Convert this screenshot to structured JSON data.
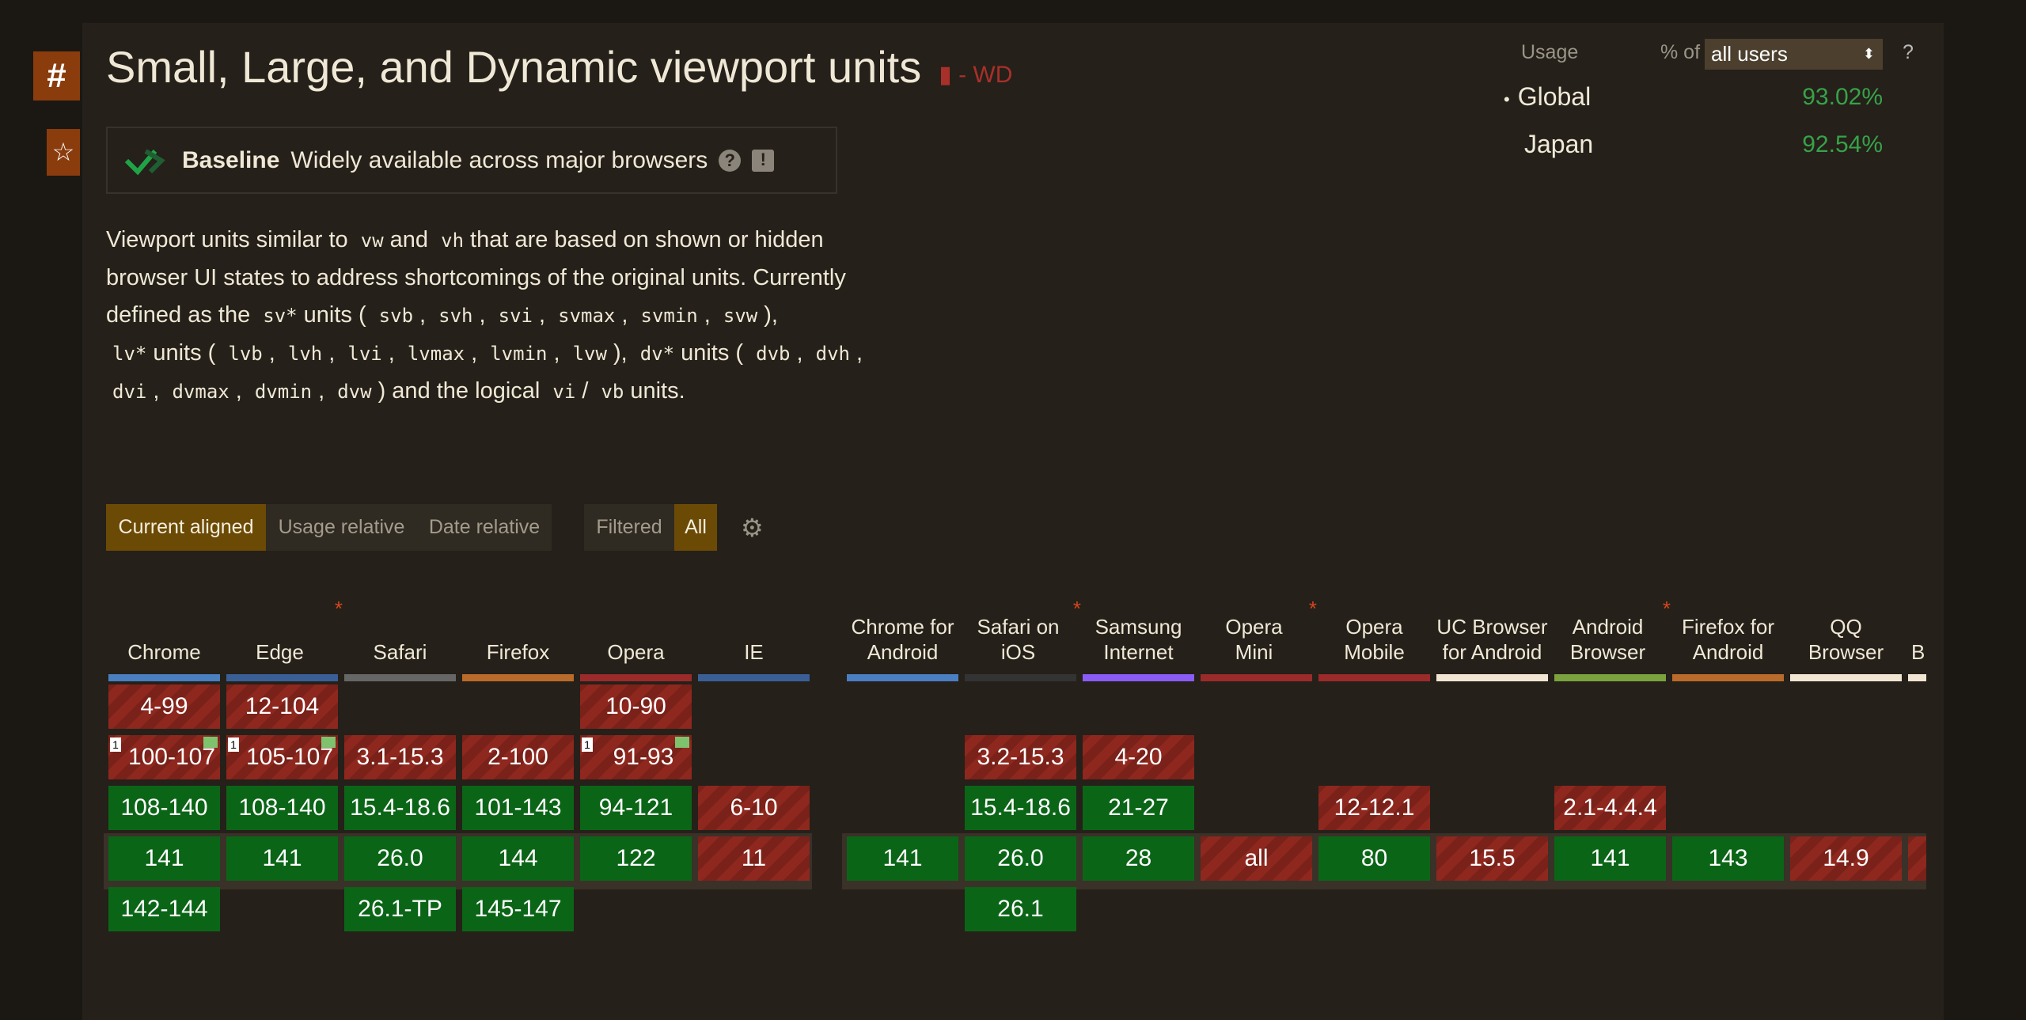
{
  "title": "Small, Large, and Dynamic viewport units",
  "spec_status": "- WD",
  "anchor_symbol": "#",
  "star_symbol": "☆",
  "baseline": {
    "label": "Baseline",
    "text": "Widely available across major browsers",
    "help": "?",
    "feedback": "!"
  },
  "description": [
    {
      "t": "Viewport units similar to"
    },
    {
      "c": "vw"
    },
    {
      "t": "and"
    },
    {
      "c": "vh"
    },
    {
      "t": "that are based on shown or hidden browser UI states to address shortcomings of the original units. Currently defined as the"
    },
    {
      "c": "sv*"
    },
    {
      "t": "units ("
    },
    {
      "c": "svb"
    },
    {
      "t": ","
    },
    {
      "c": "svh"
    },
    {
      "t": ","
    },
    {
      "c": "svi"
    },
    {
      "t": ","
    },
    {
      "c": "svmax"
    },
    {
      "t": ","
    },
    {
      "c": "svmin"
    },
    {
      "t": ","
    },
    {
      "c": "svw"
    },
    {
      "t": "),"
    },
    {
      "c": "lv*"
    },
    {
      "t": "units ("
    },
    {
      "c": "lvb"
    },
    {
      "t": ","
    },
    {
      "c": "lvh"
    },
    {
      "t": ","
    },
    {
      "c": "lvi"
    },
    {
      "t": ","
    },
    {
      "c": "lvmax"
    },
    {
      "t": ","
    },
    {
      "c": "lvmin"
    },
    {
      "t": ","
    },
    {
      "c": "lvw"
    },
    {
      "t": "),"
    },
    {
      "c": "dv*"
    },
    {
      "t": "units ("
    },
    {
      "c": "dvb"
    },
    {
      "t": ","
    },
    {
      "c": "dvh"
    },
    {
      "t": ","
    },
    {
      "c": "dvi"
    },
    {
      "t": ","
    },
    {
      "c": "dvmax"
    },
    {
      "t": ","
    },
    {
      "c": "dvmin"
    },
    {
      "t": ","
    },
    {
      "c": "dvw"
    },
    {
      "t": ") and the logical"
    },
    {
      "c": "vi"
    },
    {
      "t": "/"
    },
    {
      "c": "vb"
    },
    {
      "t": "units."
    }
  ],
  "view_buttons": {
    "current_aligned": "Current aligned",
    "usage_relative": "Usage relative",
    "date_relative": "Date relative",
    "filtered": "Filtered",
    "all": "All"
  },
  "usage": {
    "label": "Usage",
    "pct_of": "% of",
    "select_value": "all users",
    "help": "?",
    "regions": [
      {
        "name": "Global",
        "value": "93.02%",
        "bullet": "•"
      },
      {
        "name": "Japan",
        "value": "92.54%",
        "bullet": ""
      }
    ]
  },
  "colors": {
    "supported": "#0b6517",
    "unsupported": "#8e281f",
    "accent": "#6b4a06"
  },
  "browsers": [
    {
      "name": "Chrome",
      "bar": "#4a7fc1",
      "cells": [
        {
          "v": "4-99",
          "s": "n"
        },
        {
          "v": "100-107",
          "s": "n",
          "note": "1",
          "flag": true
        },
        {
          "v": "108-140",
          "s": "y"
        },
        {
          "v": "141",
          "s": "y"
        },
        {
          "v": "142-144",
          "s": "y"
        }
      ]
    },
    {
      "name": "Edge",
      "ast": true,
      "bar": "#3a5f96",
      "cells": [
        {
          "v": "12-104",
          "s": "n"
        },
        {
          "v": "105-107",
          "s": "n",
          "note": "1",
          "flag": true
        },
        {
          "v": "108-140",
          "s": "y"
        },
        {
          "v": "141",
          "s": "y"
        },
        null
      ]
    },
    {
      "name": "Safari",
      "bar": "#666666",
      "cells": [
        null,
        {
          "v": "3.1-15.3",
          "s": "n"
        },
        {
          "v": "15.4-18.6",
          "s": "y"
        },
        {
          "v": "26.0",
          "s": "y"
        },
        {
          "v": "26.1-TP",
          "s": "y"
        }
      ]
    },
    {
      "name": "Firefox",
      "bar": "#b86b2a",
      "cells": [
        null,
        {
          "v": "2-100",
          "s": "n"
        },
        {
          "v": "101-143",
          "s": "y"
        },
        {
          "v": "144",
          "s": "y"
        },
        {
          "v": "145-147",
          "s": "y"
        }
      ]
    },
    {
      "name": "Opera",
      "bar": "#9b2a2a",
      "cells": [
        {
          "v": "10-90",
          "s": "n"
        },
        {
          "v": "91-93",
          "s": "n",
          "note": "1",
          "flag": true
        },
        {
          "v": "94-121",
          "s": "y"
        },
        {
          "v": "122",
          "s": "y"
        },
        null
      ]
    },
    {
      "name": "IE",
      "bar": "#3a5f96",
      "cells": [
        null,
        null,
        {
          "v": "6-10",
          "s": "n"
        },
        {
          "v": "11",
          "s": "n"
        },
        null
      ]
    },
    {
      "name": "Chrome for Android",
      "bar": "#4a7fc1",
      "mobile": true,
      "cells": [
        null,
        null,
        null,
        {
          "v": "141",
          "s": "y"
        },
        null
      ]
    },
    {
      "name": "Safari on iOS",
      "ast": true,
      "bar": "#333333",
      "mobile": true,
      "cells": [
        null,
        {
          "v": "3.2-15.3",
          "s": "n"
        },
        {
          "v": "15.4-18.6",
          "s": "y"
        },
        {
          "v": "26.0",
          "s": "y"
        },
        {
          "v": "26.1",
          "s": "y"
        }
      ]
    },
    {
      "name": "Samsung Internet",
      "bar": "#8a5cf5",
      "mobile": true,
      "cells": [
        null,
        {
          "v": "4-20",
          "s": "n"
        },
        {
          "v": "21-27",
          "s": "y"
        },
        {
          "v": "28",
          "s": "y"
        },
        null
      ]
    },
    {
      "name": "Opera Mini",
      "ast": true,
      "bar": "#9b2a2a",
      "mobile": true,
      "cells": [
        null,
        null,
        null,
        {
          "v": "all",
          "s": "n"
        },
        null
      ]
    },
    {
      "name": "Opera Mobile",
      "bar": "#9b2a2a",
      "mobile": true,
      "cells": [
        null,
        null,
        {
          "v": "12-12.1",
          "s": "n"
        },
        {
          "v": "80",
          "s": "y"
        },
        null
      ]
    },
    {
      "name": "UC Browser for Android",
      "bar": "#f0e6d2",
      "mobile": true,
      "cells": [
        null,
        null,
        null,
        {
          "v": "15.5",
          "s": "n"
        },
        null
      ]
    },
    {
      "name": "Android Browser",
      "ast": true,
      "bar": "#7aa23e",
      "mobile": true,
      "cells": [
        null,
        null,
        {
          "v": "2.1-4.4.4",
          "s": "n"
        },
        {
          "v": "141",
          "s": "y"
        },
        null
      ]
    },
    {
      "name": "Firefox for Android",
      "bar": "#b86b2a",
      "mobile": true,
      "cells": [
        null,
        null,
        null,
        {
          "v": "143",
          "s": "y"
        },
        null
      ]
    },
    {
      "name": "QQ Browser",
      "bar": "#f0e6d2",
      "mobile": true,
      "cells": [
        null,
        null,
        null,
        {
          "v": "14.9",
          "s": "n"
        },
        null
      ]
    },
    {
      "name": "B",
      "bar": "#f0e6d2",
      "mobile": true,
      "partial": true,
      "cells": [
        null,
        null,
        null,
        {
          "v": "",
          "s": "n"
        },
        null
      ]
    }
  ]
}
